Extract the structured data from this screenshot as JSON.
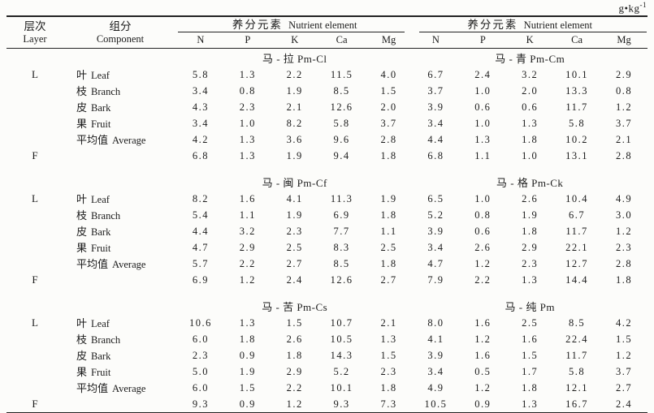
{
  "page": {
    "unit_base": "g•kg",
    "unit_sup": "-1"
  },
  "table": {
    "header": {
      "layer_zh": "层次",
      "layer_en": "Layer",
      "component_zh": "组分",
      "component_en": "Component",
      "group_zh": "养分元素",
      "group_en": "Nutrient element"
    },
    "columns": [
      "N",
      "P",
      "K",
      "Ca",
      "Mg"
    ],
    "sections": [
      {
        "title_left": "马 - 拉 Pm-Cl",
        "title_right": "马 - 青 Pm-Cm",
        "rows": [
          {
            "layer": "L",
            "component_zh": "叶",
            "component_en": "Leaf",
            "values": [
              "5.8",
              "1.3",
              "2.2",
              "11.5",
              "4.0",
              "6.7",
              "2.4",
              "3.2",
              "10.1",
              "2.9"
            ]
          },
          {
            "layer": "",
            "component_zh": "枝",
            "component_en": "Branch",
            "values": [
              "3.4",
              "0.8",
              "1.9",
              "8.5",
              "1.5",
              "3.7",
              "1.0",
              "2.0",
              "13.3",
              "0.8"
            ]
          },
          {
            "layer": "",
            "component_zh": "皮",
            "component_en": "Bark",
            "values": [
              "4.3",
              "2.3",
              "2.1",
              "12.6",
              "2.0",
              "3.9",
              "0.6",
              "0.6",
              "11.7",
              "1.2"
            ]
          },
          {
            "layer": "",
            "component_zh": "果",
            "component_en": "Fruit",
            "values": [
              "3.4",
              "1.0",
              "8.2",
              "5.8",
              "3.7",
              "3.4",
              "1.0",
              "1.3",
              "5.8",
              "3.7"
            ]
          },
          {
            "layer": "",
            "component_zh": "平均值",
            "component_en": "Average",
            "values": [
              "4.2",
              "1.3",
              "3.6",
              "9.6",
              "2.8",
              "4.4",
              "1.3",
              "1.8",
              "10.2",
              "2.1"
            ]
          },
          {
            "layer": "F",
            "component_zh": "",
            "component_en": "",
            "values": [
              "6.8",
              "1.3",
              "1.9",
              "9.4",
              "1.8",
              "6.8",
              "1.1",
              "1.0",
              "13.1",
              "2.8"
            ]
          }
        ]
      },
      {
        "title_left": "马 - 闽 Pm-Cf",
        "title_right": "马 - 格 Pm-Ck",
        "rows": [
          {
            "layer": "L",
            "component_zh": "叶",
            "component_en": "Leaf",
            "values": [
              "8.2",
              "1.6",
              "4.1",
              "11.3",
              "1.9",
              "6.5",
              "1.0",
              "2.6",
              "10.4",
              "4.9"
            ]
          },
          {
            "layer": "",
            "component_zh": "枝",
            "component_en": "Branch",
            "values": [
              "5.4",
              "1.1",
              "1.9",
              "6.9",
              "1.8",
              "5.2",
              "0.8",
              "1.9",
              "6.7",
              "3.0"
            ]
          },
          {
            "layer": "",
            "component_zh": "皮",
            "component_en": "Bark",
            "values": [
              "4.4",
              "3.2",
              "2.3",
              "7.7",
              "1.1",
              "3.9",
              "0.6",
              "1.8",
              "11.7",
              "1.2"
            ]
          },
          {
            "layer": "",
            "component_zh": "果",
            "component_en": "Fruit",
            "values": [
              "4.7",
              "2.9",
              "2.5",
              "8.3",
              "2.5",
              "3.4",
              "2.6",
              "2.9",
              "22.1",
              "2.3"
            ]
          },
          {
            "layer": "",
            "component_zh": "平均值",
            "component_en": "Average",
            "values": [
              "5.7",
              "2.2",
              "2.7",
              "8.5",
              "1.8",
              "4.7",
              "1.2",
              "2.3",
              "12.7",
              "2.8"
            ]
          },
          {
            "layer": "F",
            "component_zh": "",
            "component_en": "",
            "values": [
              "6.9",
              "1.2",
              "2.4",
              "12.6",
              "2.7",
              "7.9",
              "2.2",
              "1.3",
              "14.4",
              "1.8"
            ]
          }
        ]
      },
      {
        "title_left": "马 - 苦 Pm-Cs",
        "title_right": "马 - 纯 Pm",
        "rows": [
          {
            "layer": "L",
            "component_zh": "叶",
            "component_en": "Leaf",
            "values": [
              "10.6",
              "1.3",
              "1.5",
              "10.7",
              "2.1",
              "8.0",
              "1.6",
              "2.5",
              "8.5",
              "4.2"
            ]
          },
          {
            "layer": "",
            "component_zh": "枝",
            "component_en": "Branch",
            "values": [
              "6.0",
              "1.8",
              "2.6",
              "10.5",
              "1.3",
              "4.1",
              "1.2",
              "1.6",
              "22.4",
              "1.5"
            ]
          },
          {
            "layer": "",
            "component_zh": "皮",
            "component_en": "Bark",
            "values": [
              "2.3",
              "0.9",
              "1.8",
              "14.3",
              "1.5",
              "3.9",
              "1.6",
              "1.5",
              "11.7",
              "1.2"
            ]
          },
          {
            "layer": "",
            "component_zh": "果",
            "component_en": "Fruit",
            "values": [
              "5.0",
              "1.9",
              "2.9",
              "5.2",
              "2.3",
              "3.4",
              "0.5",
              "1.7",
              "5.8",
              "3.7"
            ]
          },
          {
            "layer": "",
            "component_zh": "平均值",
            "component_en": "Average",
            "values": [
              "6.0",
              "1.5",
              "2.2",
              "10.1",
              "1.8",
              "4.9",
              "1.2",
              "1.8",
              "12.1",
              "2.7"
            ]
          },
          {
            "layer": "F",
            "component_zh": "",
            "component_en": "",
            "values": [
              "9.3",
              "0.9",
              "1.2",
              "9.3",
              "7.3",
              "10.5",
              "0.9",
              "1.3",
              "16.7",
              "2.4"
            ]
          }
        ]
      }
    ]
  }
}
